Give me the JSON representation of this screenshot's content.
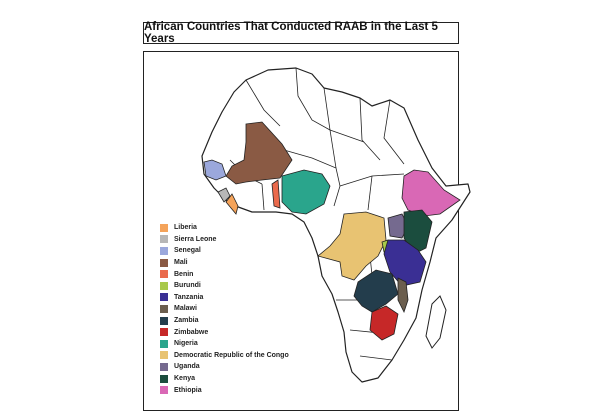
{
  "title": "African Countries That Conducted RAAB in the Last 5 Years",
  "legend": [
    {
      "name": "Liberia",
      "color": "#f4a35a"
    },
    {
      "name": "Sierra Leone",
      "color": "#b7b7b7"
    },
    {
      "name": "Senegal",
      "color": "#9ba8dc"
    },
    {
      "name": "Mali",
      "color": "#8a5a44"
    },
    {
      "name": "Benin",
      "color": "#ea6a4c"
    },
    {
      "name": "Burundi",
      "color": "#a8c94a"
    },
    {
      "name": "Tanzania",
      "color": "#3a2f94"
    },
    {
      "name": "Malawi",
      "color": "#6b5e4e"
    },
    {
      "name": "Zambia",
      "color": "#233d4c"
    },
    {
      "name": "Zimbabwe",
      "color": "#c62828"
    },
    {
      "name": "Nigeria",
      "color": "#2aa58c"
    },
    {
      "name": "Democratic Republic of the Congo",
      "color": "#e8c372"
    },
    {
      "name": "Uganda",
      "color": "#756a8f"
    },
    {
      "name": "Kenya",
      "color": "#1b4d3e"
    },
    {
      "name": "Ethiopia",
      "color": "#d968b5"
    }
  ]
}
